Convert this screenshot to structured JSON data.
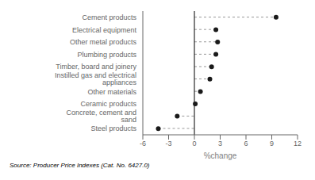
{
  "chart_data": {
    "type": "lollipop",
    "orientation": "horizontal",
    "categories": [
      "Cement products",
      "Electrical equipment",
      "Other metal products",
      "Plumbing products",
      "Timber, board and joinery",
      "Instilled gas and electrical appliances",
      "Other materials",
      "Ceramic products",
      "Concrete, cement and sand",
      "Steel products"
    ],
    "values": [
      9.5,
      2.5,
      2.7,
      2.5,
      2.0,
      1.8,
      0.7,
      0.1,
      -2.0,
      -4.2
    ],
    "color": "#1a1a1a",
    "marker": "circle",
    "line_style": "dashed",
    "xlim": [
      -6,
      12
    ],
    "xticks": [
      -6,
      -3,
      0,
      3,
      6,
      9,
      12
    ],
    "xlabel": "%change",
    "grid": false,
    "annotations": [
      "Source: Producer Price Indexes (Cat. No. 6427.0)"
    ]
  }
}
